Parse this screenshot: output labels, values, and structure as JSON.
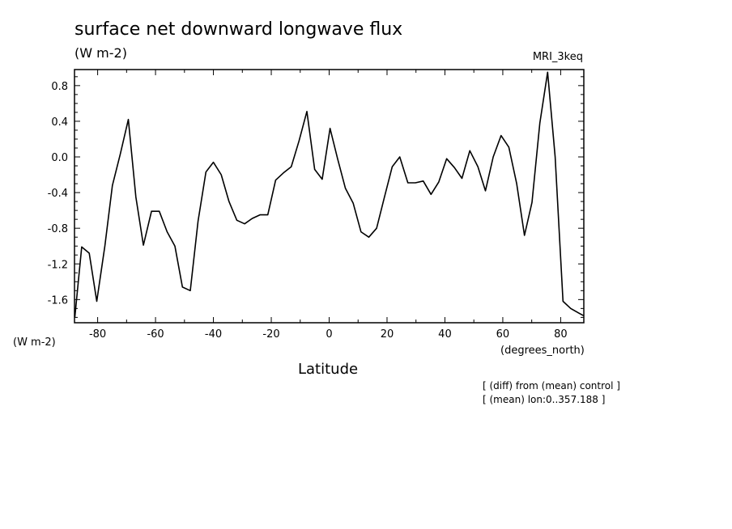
{
  "chart_data": {
    "type": "line",
    "title": "surface net downward longwave flux",
    "units": "(W m-2)",
    "model": "MRI_3keq",
    "xlabel": "Latitude",
    "x_unit": "(degrees_north)",
    "y_unit": "(W m-2)",
    "notes": [
      "[ (diff) from (mean) control ]",
      "[ (mean) lon:0..357.188 ]"
    ],
    "xlim": [
      -88,
      88
    ],
    "ylim": [
      -1.86,
      0.98
    ],
    "x_ticks": [
      -80,
      -60,
      -40,
      -20,
      0,
      20,
      40,
      60,
      80
    ],
    "x_tick_labels": [
      "-80",
      "-60",
      "-40",
      "-20",
      "0",
      "20",
      "40",
      "60",
      "80"
    ],
    "y_ticks": [
      0.8,
      0.4,
      0.0,
      -0.4,
      -0.8,
      -1.2,
      -1.6
    ],
    "y_tick_labels": [
      "0.8",
      "0.4",
      "0.0",
      "-0.4",
      "-0.8",
      "-1.2",
      "-1.6"
    ],
    "grid": false,
    "series": [
      {
        "x": [
          -87.9,
          -85.5,
          -82.9,
          -80.3,
          -77.5,
          -74.9,
          -72.2,
          -69.4,
          -66.8,
          -64.2,
          -61.4,
          -58.7,
          -56.0,
          -53.3,
          -50.7,
          -48.0,
          -45.3,
          -42.6,
          -40.0,
          -37.3,
          -34.6,
          -31.9,
          -29.2,
          -26.6,
          -23.9,
          -21.2,
          -18.5,
          -15.8,
          -13.1,
          -10.4,
          -7.7,
          -5.0,
          -2.4,
          0.3,
          2.9,
          5.6,
          8.3,
          11.0,
          13.7,
          16.4,
          19.1,
          21.8,
          24.4,
          27.2,
          29.8,
          32.5,
          35.2,
          37.9,
          40.6,
          43.3,
          45.9,
          48.6,
          51.4,
          54.0,
          56.7,
          59.4,
          62.1,
          64.8,
          67.5,
          70.1,
          72.8,
          75.5,
          78.1,
          80.8,
          83.5,
          86.2,
          87.9
        ],
        "y": [
          -1.8,
          -1.01,
          -1.08,
          -1.62,
          -1.0,
          -0.32,
          0.03,
          0.42,
          -0.45,
          -0.99,
          -0.61,
          -0.61,
          -0.84,
          -1.0,
          -1.46,
          -1.5,
          -0.72,
          -0.17,
          -0.06,
          -0.2,
          -0.5,
          -0.71,
          -0.75,
          -0.69,
          -0.65,
          -0.65,
          -0.26,
          -0.18,
          -0.11,
          0.18,
          0.51,
          -0.14,
          -0.25,
          0.32,
          -0.02,
          -0.35,
          -0.52,
          -0.84,
          -0.9,
          -0.8,
          -0.45,
          -0.11,
          0.0,
          -0.29,
          -0.29,
          -0.27,
          -0.42,
          -0.28,
          -0.02,
          -0.12,
          -0.24,
          0.07,
          -0.11,
          -0.38,
          0.0,
          0.24,
          0.11,
          -0.3,
          -0.88,
          -0.51,
          0.38,
          0.95,
          0.0,
          -1.62,
          -1.7,
          -1.75,
          -1.78
        ]
      }
    ]
  }
}
